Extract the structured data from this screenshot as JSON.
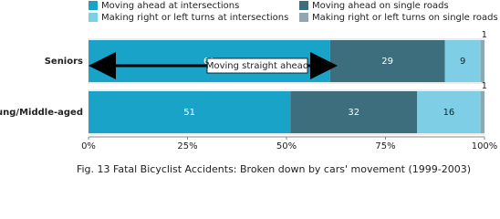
{
  "chart_data": {
    "type": "stacked_barh",
    "title": "Fig. 13  Fatal Bicyclist Accidents: Broken down by cars' movement (1999-2003)",
    "categories": [
      "Seniors",
      "Young/Middle-aged"
    ],
    "series": [
      {
        "name": "Moving ahead at intersections",
        "color": "#1aa3c8",
        "values": [
          61,
          51
        ]
      },
      {
        "name": "Moving ahead on single roads",
        "color": "#3d6e7e",
        "values": [
          29,
          32
        ]
      },
      {
        "name": "Making right or left turns at intersections",
        "color": "#7ecfe6",
        "values": [
          9,
          16
        ]
      },
      {
        "name": "Making right or left turns on single roads",
        "color": "#8fa7b0",
        "values": [
          1,
          1
        ]
      }
    ],
    "xlim": [
      0,
      100
    ],
    "xticks": [
      {
        "value": 0,
        "label": "0%"
      },
      {
        "value": 25,
        "label": "25%"
      },
      {
        "value": 50,
        "label": "50%"
      },
      {
        "value": 75,
        "label": "75%"
      },
      {
        "value": 100,
        "label": "100%"
      }
    ],
    "annotation": "Moving straight ahead",
    "legend": "top"
  }
}
